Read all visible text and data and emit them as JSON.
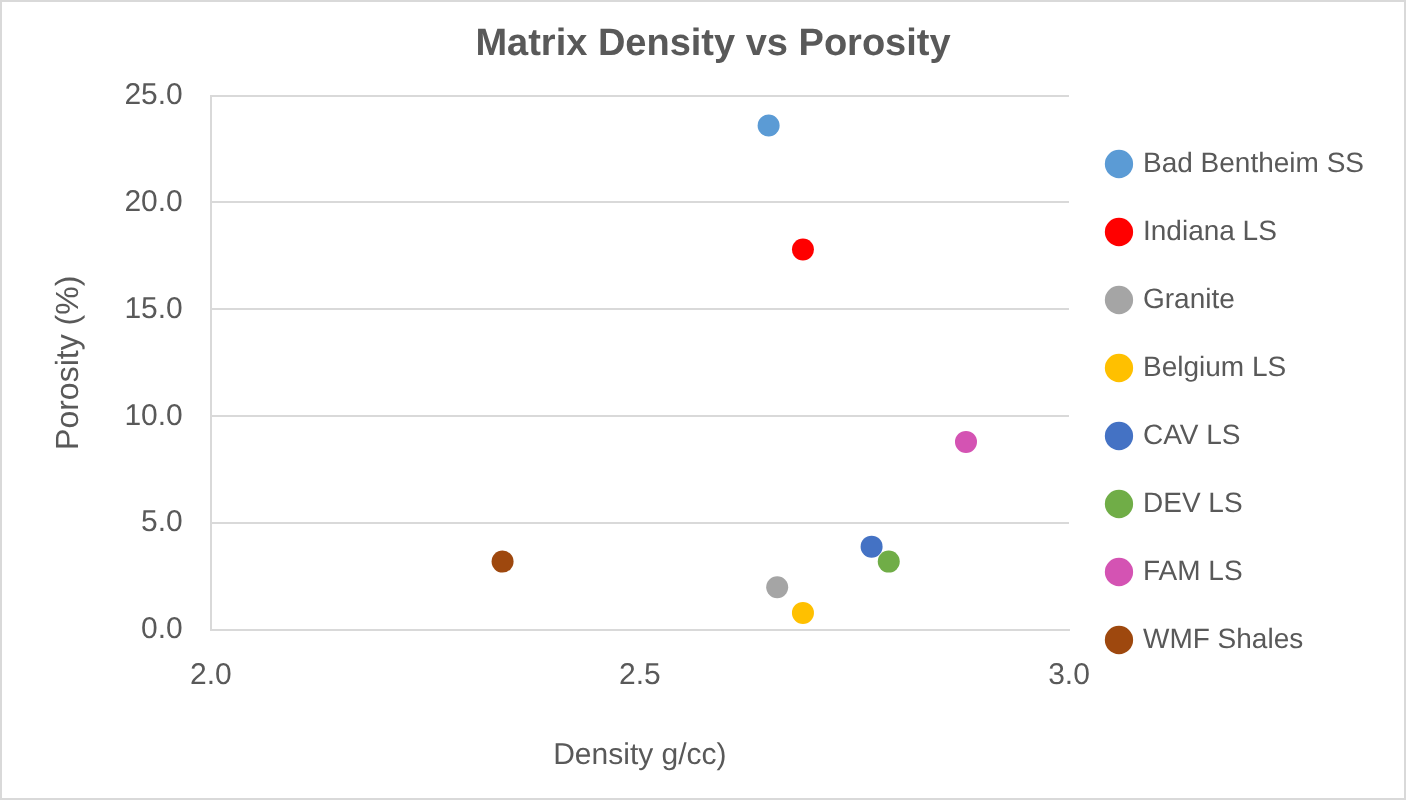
{
  "chart_data": {
    "type": "scatter",
    "title": "Matrix Density vs Porosity",
    "xlabel": "Density g/cc)",
    "ylabel": "Porosity (%)",
    "series": [
      {
        "name": "Bad Bentheim SS",
        "color": "#5b9bd5",
        "x": [
          2.65
        ],
        "values": [
          23.6
        ]
      },
      {
        "name": "Indiana LS",
        "color": "#ff0000",
        "x": [
          2.69
        ],
        "values": [
          17.8
        ]
      },
      {
        "name": "Granite",
        "color": "#a5a5a5",
        "x": [
          2.66
        ],
        "values": [
          2.0
        ]
      },
      {
        "name": "Belgium LS",
        "color": "#ffc000",
        "x": [
          2.69
        ],
        "values": [
          0.8
        ]
      },
      {
        "name": "CAV LS",
        "color": "#4472c4",
        "x": [
          2.77
        ],
        "values": [
          3.9
        ]
      },
      {
        "name": "DEV LS",
        "color": "#70ad47",
        "x": [
          2.79
        ],
        "values": [
          3.2
        ]
      },
      {
        "name": "FAM LS",
        "color": "#d453b3",
        "x": [
          2.88
        ],
        "values": [
          8.8
        ]
      },
      {
        "name": "WMF Shales",
        "color": "#9e480e",
        "x": [
          2.34
        ],
        "values": [
          3.2
        ]
      }
    ],
    "xlim": [
      2.0,
      3.0
    ],
    "xticks": [
      {
        "value": 2,
        "label": "2.0"
      },
      {
        "value": 2.5,
        "label": "2.5"
      },
      {
        "value": 3,
        "label": "3.0"
      }
    ],
    "ylim": [
      0,
      25
    ],
    "yticks": [
      {
        "value": 0,
        "label": "0.0"
      },
      {
        "value": 5,
        "label": "5.0"
      },
      {
        "value": 10,
        "label": "10.0"
      },
      {
        "value": 15,
        "label": "15.0"
      },
      {
        "value": 20,
        "label": "20.0"
      },
      {
        "value": 25,
        "label": "25.0"
      }
    ],
    "grid": "y",
    "legend": "right",
    "marker": "circle"
  }
}
